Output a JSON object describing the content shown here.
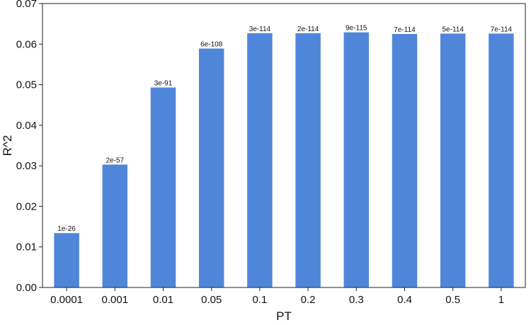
{
  "chart_data": {
    "type": "bar",
    "title": "",
    "xlabel": "PT",
    "ylabel": "R^2",
    "ylim": [
      0,
      0.07
    ],
    "yticks": [
      "0.00",
      "0.01",
      "0.02",
      "0.03",
      "0.04",
      "0.05",
      "0.06",
      "0.07"
    ],
    "grid": false,
    "bar_color": "#4f86d9",
    "categories": [
      "0.0001",
      "0.001",
      "0.01",
      "0.05",
      "0.1",
      "0.2",
      "0.3",
      "0.4",
      "0.5",
      "1"
    ],
    "values": [
      0.0134,
      0.0303,
      0.0493,
      0.0589,
      0.0627,
      0.0627,
      0.0629,
      0.0625,
      0.0626,
      0.0626
    ],
    "data_labels": [
      "1e-26",
      "2e-57",
      "3e-91",
      "6e-108",
      "3e-114",
      "2e-114",
      "9e-115",
      "7e-114",
      "5e-114",
      "7e-114"
    ]
  }
}
